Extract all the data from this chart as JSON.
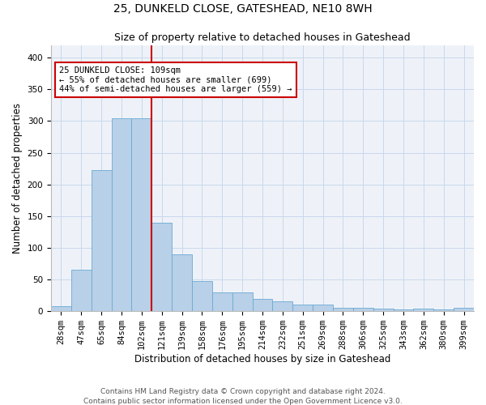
{
  "title": "25, DUNKELD CLOSE, GATESHEAD, NE10 8WH",
  "subtitle": "Size of property relative to detached houses in Gateshead",
  "xlabel": "Distribution of detached houses by size in Gateshead",
  "ylabel": "Number of detached properties",
  "bar_values": [
    8,
    65,
    222,
    305,
    305,
    140,
    90,
    47,
    30,
    30,
    19,
    15,
    11,
    10,
    5,
    5,
    4,
    3,
    4,
    3,
    5
  ],
  "bar_labels": [
    "28sqm",
    "47sqm",
    "65sqm",
    "84sqm",
    "102sqm",
    "121sqm",
    "139sqm",
    "158sqm",
    "176sqm",
    "195sqm",
    "214sqm",
    "232sqm",
    "251sqm",
    "269sqm",
    "288sqm",
    "306sqm",
    "325sqm",
    "343sqm",
    "362sqm",
    "380sqm",
    "399sqm"
  ],
  "bar_color": "#b8d0e8",
  "bar_edge_color": "#6aaad4",
  "vline_x_pos": 4.5,
  "vline_color": "#cc0000",
  "annotation_text": "25 DUNKELD CLOSE: 109sqm\n← 55% of detached houses are smaller (699)\n44% of semi-detached houses are larger (559) →",
  "annotation_box_color": "#ffffff",
  "annotation_box_edge": "#cc0000",
  "ylim": [
    0,
    420
  ],
  "yticks": [
    0,
    50,
    100,
    150,
    200,
    250,
    300,
    350,
    400
  ],
  "grid_color": "#c8d8ec",
  "background_color": "#eef2f8",
  "footer_line1": "Contains HM Land Registry data © Crown copyright and database right 2024.",
  "footer_line2": "Contains public sector information licensed under the Open Government Licence v3.0.",
  "title_fontsize": 10,
  "subtitle_fontsize": 9,
  "axis_label_fontsize": 8.5,
  "tick_fontsize": 7.5,
  "annotation_fontsize": 7.5,
  "footer_fontsize": 6.5
}
